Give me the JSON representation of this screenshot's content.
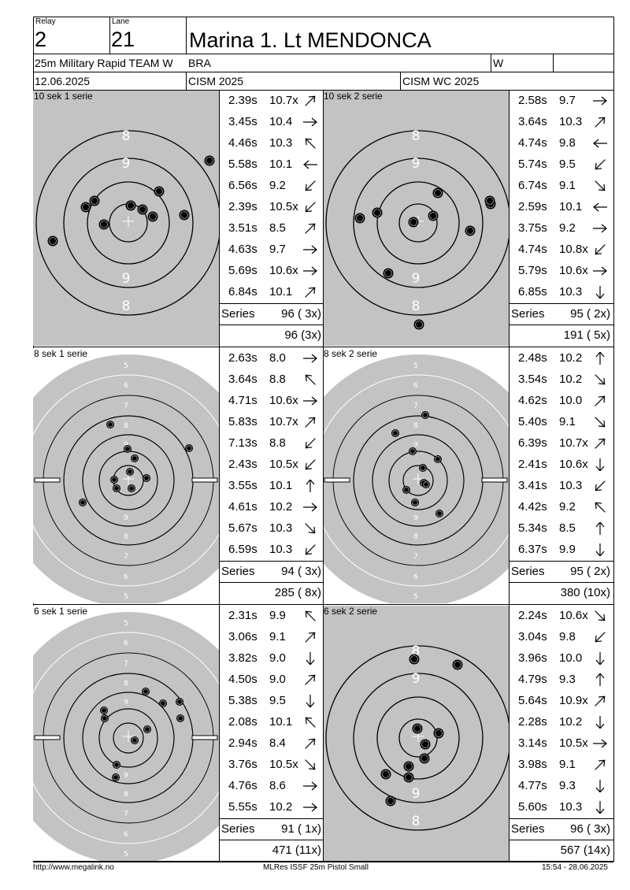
{
  "header": {
    "relay_label": "Relay",
    "relay": "2",
    "lane_label": "Lane",
    "lane": "21",
    "shooter": "Marina 1. Lt MENDONCA",
    "event": "25m Military Rapid TEAM W",
    "nation": "BRA",
    "gender": "W",
    "date": "12.06.2025",
    "competition": "CISM 2025",
    "championship": "CISM WC 2025"
  },
  "panels": [
    {
      "title": "10 sek 1 serie",
      "target": "precision",
      "shots": [
        {
          "time": "2.39s",
          "score": "10.7x",
          "dir": "NE"
        },
        {
          "time": "3.45s",
          "score": "10.4",
          "dir": "E"
        },
        {
          "time": "4.46s",
          "score": "10.3",
          "dir": "NW"
        },
        {
          "time": "5.58s",
          "score": "10.1",
          "dir": "W"
        },
        {
          "time": "6.56s",
          "score": "9.2",
          "dir": "SW"
        },
        {
          "time": "2.39s",
          "score": "10.5x",
          "dir": "SW"
        },
        {
          "time": "3.51s",
          "score": "8.5",
          "dir": "NE"
        },
        {
          "time": "4.63s",
          "score": "9.7",
          "dir": "E"
        },
        {
          "time": "5.69s",
          "score": "10.6x",
          "dir": "E"
        },
        {
          "time": "6.84s",
          "score": "10.1",
          "dir": "NE"
        }
      ],
      "series_label": "Series",
      "series_total": "96 ( 3x)",
      "running_total": "96 (3x)"
    },
    {
      "title": "10 sek 2 serie",
      "target": "precision",
      "shots": [
        {
          "time": "2.58s",
          "score": "9.7",
          "dir": "E"
        },
        {
          "time": "3.64s",
          "score": "10.3",
          "dir": "NE"
        },
        {
          "time": "4.74s",
          "score": "9.8",
          "dir": "W"
        },
        {
          "time": "5.74s",
          "score": "9.5",
          "dir": "SW"
        },
        {
          "time": "6.74s",
          "score": "9.1",
          "dir": "SE"
        },
        {
          "time": "2.59s",
          "score": "10.1",
          "dir": "W"
        },
        {
          "time": "3.75s",
          "score": "9.2",
          "dir": "E"
        },
        {
          "time": "4.74s",
          "score": "10.8x",
          "dir": "SW"
        },
        {
          "time": "5.79s",
          "score": "10.6x",
          "dir": "E"
        },
        {
          "time": "6.85s",
          "score": "10.3",
          "dir": "S"
        }
      ],
      "series_label": "Series",
      "series_total": "95 ( 2x)",
      "running_total": "191 ( 5x)"
    },
    {
      "title": "8 sek 1 serie",
      "target": "rapid",
      "shots": [
        {
          "time": "2.63s",
          "score": "8.0",
          "dir": "E"
        },
        {
          "time": "3.64s",
          "score": "8.8",
          "dir": "NW"
        },
        {
          "time": "4.71s",
          "score": "10.6x",
          "dir": "E"
        },
        {
          "time": "5.83s",
          "score": "10.7x",
          "dir": "NE"
        },
        {
          "time": "7.13s",
          "score": "8.8",
          "dir": "SW"
        },
        {
          "time": "2.43s",
          "score": "10.5x",
          "dir": "SW"
        },
        {
          "time": "3.55s",
          "score": "10.1",
          "dir": "N"
        },
        {
          "time": "4.61s",
          "score": "10.2",
          "dir": "E"
        },
        {
          "time": "5.67s",
          "score": "10.3",
          "dir": "SE"
        },
        {
          "time": "6.59s",
          "score": "10.3",
          "dir": "SW"
        }
      ],
      "series_label": "Series",
      "series_total": "94 ( 3x)",
      "running_total": "285 ( 8x)"
    },
    {
      "title": "8 sek 2 serie",
      "target": "rapid",
      "shots": [
        {
          "time": "2.48s",
          "score": "10.2",
          "dir": "N"
        },
        {
          "time": "3.54s",
          "score": "10.2",
          "dir": "SE"
        },
        {
          "time": "4.62s",
          "score": "10.0",
          "dir": "NE"
        },
        {
          "time": "5.40s",
          "score": "9.1",
          "dir": "SE"
        },
        {
          "time": "6.39s",
          "score": "10.7x",
          "dir": "NE"
        },
        {
          "time": "2.41s",
          "score": "10.6x",
          "dir": "S"
        },
        {
          "time": "3.41s",
          "score": "10.3",
          "dir": "SW"
        },
        {
          "time": "4.42s",
          "score": "9.2",
          "dir": "NW"
        },
        {
          "time": "5.34s",
          "score": "8.5",
          "dir": "N"
        },
        {
          "time": "6.37s",
          "score": "9.9",
          "dir": "S"
        }
      ],
      "series_label": "Series",
      "series_total": "95 ( 2x)",
      "running_total": "380 (10x)"
    },
    {
      "title": "6 sek 1 serie",
      "target": "rapid",
      "shots": [
        {
          "time": "2.31s",
          "score": "9.9",
          "dir": "NW"
        },
        {
          "time": "3.06s",
          "score": "9.1",
          "dir": "NE"
        },
        {
          "time": "3.82s",
          "score": "9.0",
          "dir": "S"
        },
        {
          "time": "4.50s",
          "score": "9.0",
          "dir": "NE"
        },
        {
          "time": "5.38s",
          "score": "9.5",
          "dir": "S"
        },
        {
          "time": "2.08s",
          "score": "10.1",
          "dir": "NW"
        },
        {
          "time": "2.94s",
          "score": "8.4",
          "dir": "NE"
        },
        {
          "time": "3.76s",
          "score": "10.5x",
          "dir": "SE"
        },
        {
          "time": "4.76s",
          "score": "8.6",
          "dir": "E"
        },
        {
          "time": "5.55s",
          "score": "10.2",
          "dir": "E"
        }
      ],
      "series_label": "Series",
      "series_total": "91 ( 1x)",
      "running_total": "471 (11x)"
    },
    {
      "title": "6 sek 2 serie",
      "target": "precision",
      "shots": [
        {
          "time": "2.24s",
          "score": "10.6x",
          "dir": "SE"
        },
        {
          "time": "3.04s",
          "score": "9.8",
          "dir": "SW"
        },
        {
          "time": "3.96s",
          "score": "10.0",
          "dir": "S"
        },
        {
          "time": "4.79s",
          "score": "9.3",
          "dir": "N"
        },
        {
          "time": "5.64s",
          "score": "10.9x",
          "dir": "NE"
        },
        {
          "time": "2.28s",
          "score": "10.2",
          "dir": "S"
        },
        {
          "time": "3.14s",
          "score": "10.5x",
          "dir": "E"
        },
        {
          "time": "3.98s",
          "score": "9.1",
          "dir": "NE"
        },
        {
          "time": "4.77s",
          "score": "9.3",
          "dir": "S"
        },
        {
          "time": "5.60s",
          "score": "10.3",
          "dir": "S"
        }
      ],
      "series_label": "Series",
      "series_total": "96 ( 3x)",
      "running_total": "567 (14x)"
    }
  ],
  "footer": {
    "url": "http://www.megalink.no",
    "software": "MLRes ISSF 25m Pistol Small",
    "timestamp": "15:54 - 28.06.2025"
  }
}
